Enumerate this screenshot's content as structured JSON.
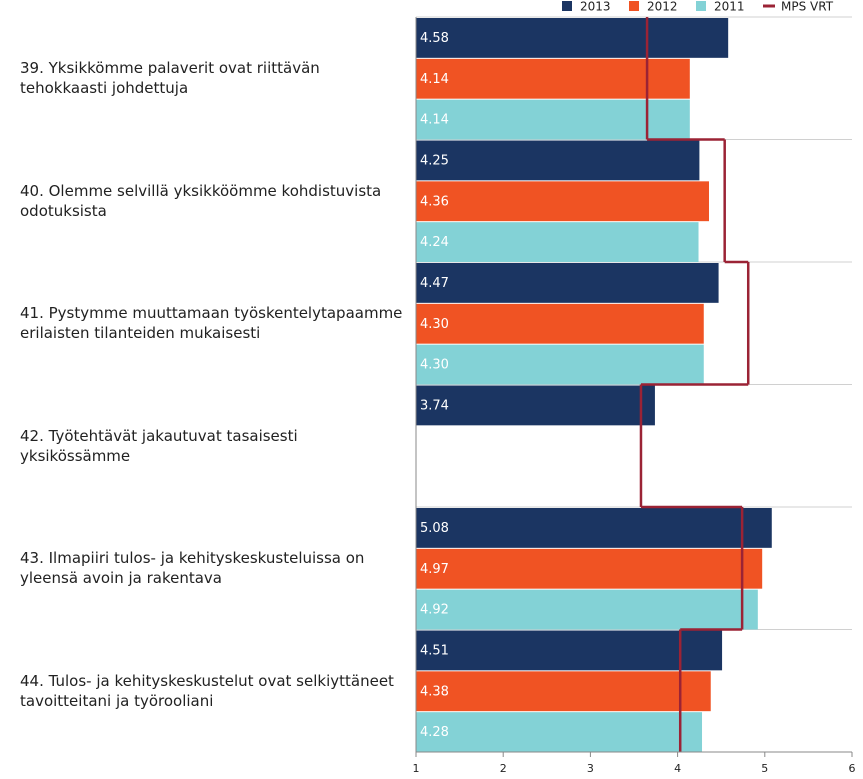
{
  "chart_data": {
    "type": "bar",
    "orientation": "horizontal",
    "categories": [
      "39. Yksikkömme palaverit ovat riittävän tehokkaasti johdettuja",
      "40. Olemme selvillä yksikköömme kohdistuvista odotuksista",
      "41. Pystymme muuttamaan työskentelytapaamme erilaisten tilanteiden mukaisesti",
      "42. Työtehtävät jakautuvat tasaisesti yksikössämme",
      "43. Ilmapiiri tulos- ja kehityskeskusteluissa on yleensä avoin ja rakentava",
      "44. Tulos- ja kehityskeskustelut ovat selkiyttäneet tavoitteitani ja työrooliani"
    ],
    "series": [
      {
        "name": "2013",
        "color": "#1b3562",
        "values": [
          4.58,
          4.25,
          4.47,
          3.74,
          5.08,
          4.51
        ],
        "value_labels": [
          "4.58",
          "4.25",
          "4.47",
          "3.74",
          "5.08",
          "4.51"
        ]
      },
      {
        "name": "2012",
        "color": "#f05323",
        "values": [
          4.14,
          4.36,
          4.3,
          null,
          4.97,
          4.38
        ],
        "value_labels": [
          "4.14",
          "4.36",
          "4.30",
          null,
          "4.97",
          "4.38"
        ]
      },
      {
        "name": "2011",
        "color": "#83d2d6",
        "values": [
          4.14,
          4.24,
          4.3,
          null,
          4.92,
          4.28
        ],
        "value_labels": [
          "4.14",
          "4.24",
          "4.30",
          null,
          "4.92",
          "4.28"
        ]
      },
      {
        "name": "MPS VRT",
        "color": "#9b2335",
        "kind": "step",
        "values": [
          3.65,
          4.54,
          4.81,
          3.58,
          4.74,
          4.03
        ]
      }
    ],
    "xlim": [
      1,
      6
    ],
    "xticks": [
      1,
      2,
      3,
      4,
      5,
      6
    ],
    "legend": "top"
  }
}
